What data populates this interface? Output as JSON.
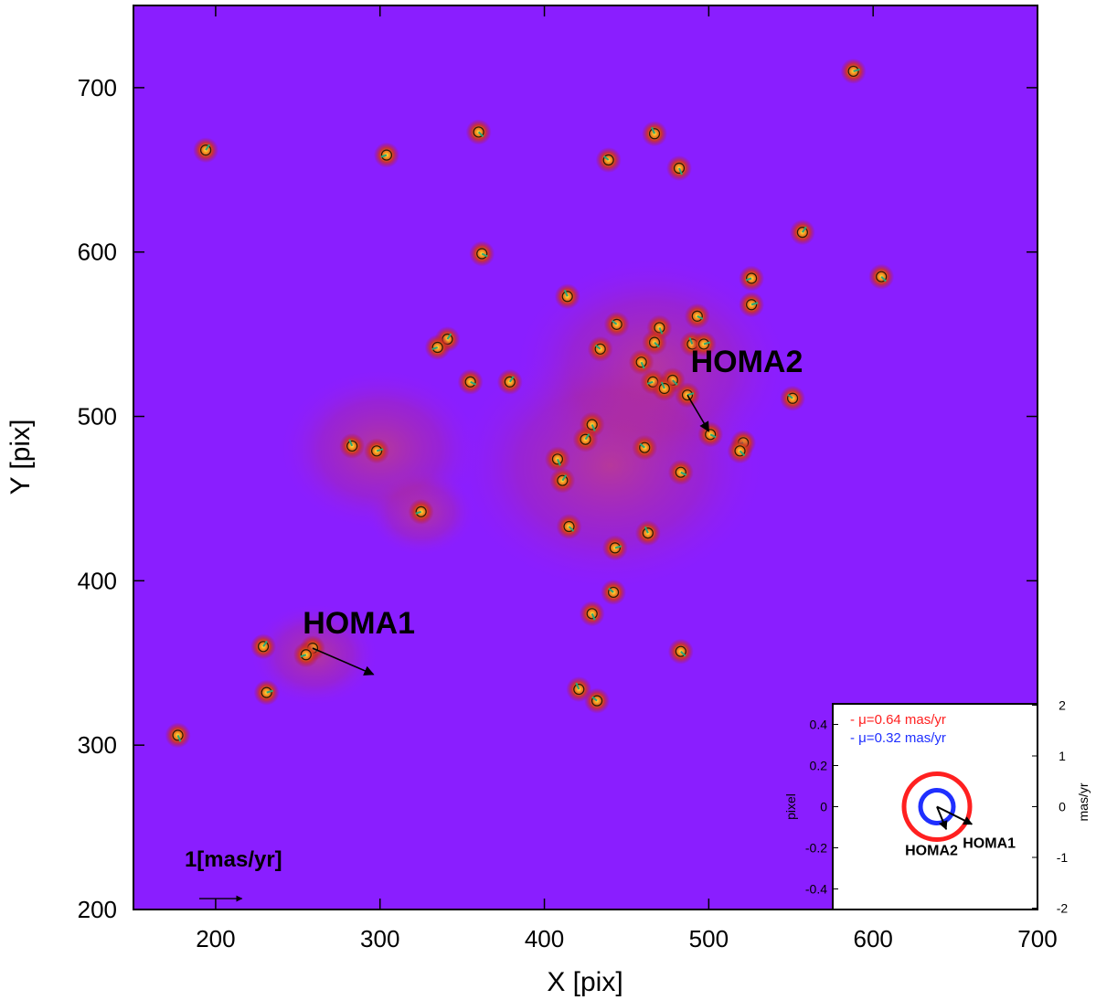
{
  "chart_data": {
    "type": "scatter",
    "title": "",
    "xlabel": "X [pix]",
    "ylabel": "Y [pix]",
    "xlim": [
      150,
      700
    ],
    "ylim": [
      200,
      750
    ],
    "xticks": [
      200,
      300,
      400,
      500,
      600,
      700
    ],
    "yticks": [
      200,
      300,
      400,
      500,
      600,
      700
    ],
    "grid": false,
    "colors": {
      "background": "#8a1eff",
      "halo": "#c0392b",
      "core": "#ffd400",
      "marker_ring": "#2b1a00",
      "vector": "#2aa87a"
    },
    "star_sources": [
      {
        "x": 194,
        "y": 662
      },
      {
        "x": 304,
        "y": 659
      },
      {
        "x": 360,
        "y": 673
      },
      {
        "x": 467,
        "y": 672
      },
      {
        "x": 588,
        "y": 710
      },
      {
        "x": 439,
        "y": 656
      },
      {
        "x": 482,
        "y": 651
      },
      {
        "x": 362,
        "y": 599
      },
      {
        "x": 557,
        "y": 612
      },
      {
        "x": 526,
        "y": 584
      },
      {
        "x": 605,
        "y": 585
      },
      {
        "x": 414,
        "y": 573
      },
      {
        "x": 526,
        "y": 568
      },
      {
        "x": 444,
        "y": 556
      },
      {
        "x": 470,
        "y": 554
      },
      {
        "x": 493,
        "y": 561
      },
      {
        "x": 341,
        "y": 547
      },
      {
        "x": 335,
        "y": 542
      },
      {
        "x": 467,
        "y": 545
      },
      {
        "x": 490,
        "y": 544
      },
      {
        "x": 497,
        "y": 544
      },
      {
        "x": 434,
        "y": 541
      },
      {
        "x": 459,
        "y": 533
      },
      {
        "x": 355,
        "y": 521
      },
      {
        "x": 379,
        "y": 521
      },
      {
        "x": 466,
        "y": 521
      },
      {
        "x": 478,
        "y": 522
      },
      {
        "x": 473,
        "y": 517
      },
      {
        "x": 487,
        "y": 513
      },
      {
        "x": 551,
        "y": 511
      },
      {
        "x": 429,
        "y": 495
      },
      {
        "x": 501,
        "y": 489
      },
      {
        "x": 425,
        "y": 486
      },
      {
        "x": 521,
        "y": 484
      },
      {
        "x": 519,
        "y": 479
      },
      {
        "x": 283,
        "y": 482
      },
      {
        "x": 298,
        "y": 479
      },
      {
        "x": 461,
        "y": 481
      },
      {
        "x": 408,
        "y": 474
      },
      {
        "x": 483,
        "y": 466
      },
      {
        "x": 411,
        "y": 461
      },
      {
        "x": 325,
        "y": 442
      },
      {
        "x": 415,
        "y": 433
      },
      {
        "x": 463,
        "y": 429
      },
      {
        "x": 443,
        "y": 420
      },
      {
        "x": 442,
        "y": 393
      },
      {
        "x": 429,
        "y": 380
      },
      {
        "x": 259,
        "y": 359
      },
      {
        "x": 229,
        "y": 360
      },
      {
        "x": 255,
        "y": 355
      },
      {
        "x": 483,
        "y": 357
      },
      {
        "x": 421,
        "y": 334
      },
      {
        "x": 231,
        "y": 332
      },
      {
        "x": 432,
        "y": 327
      },
      {
        "x": 177,
        "y": 306
      }
    ],
    "annotations": [
      {
        "text": "HOMA1",
        "x": 253,
        "y": 368,
        "vector_to": {
          "x": 296,
          "y": 343
        }
      },
      {
        "text": "HOMA2",
        "x": 489,
        "y": 527,
        "vector_to": {
          "x": 500,
          "y": 491
        }
      }
    ],
    "scale_bar": {
      "label": "1[mas/yr]",
      "x": 180,
      "y": 215,
      "vector_to": {
        "x": 206,
        "y": 215
      }
    },
    "inset": {
      "left_axis_label": "pixel",
      "right_axis_label": "mas/yr",
      "left_ylim": [
        -0.5,
        0.5
      ],
      "left_yticks": [
        "0.4",
        "0.2",
        "0",
        "-0.2",
        "-0.4"
      ],
      "left_ytick_values": [
        0.4,
        0.2,
        0,
        -0.2,
        -0.4
      ],
      "right_yticks": [
        "2",
        "1",
        "0",
        "-1",
        "-2"
      ],
      "right_ytick_values": [
        2,
        1,
        0,
        -1,
        -2
      ],
      "legend": [
        {
          "text": "- μ=0.64 mas/yr",
          "color": "#ff2020",
          "radius_pix": 0.16
        },
        {
          "text": "- μ=0.32 mas/yr",
          "color": "#1f2fff",
          "radius_pix": 0.08
        }
      ],
      "vectors": [
        {
          "label": "HOMA1",
          "dx": 0.17,
          "dy": -0.085
        },
        {
          "label": "HOMA2",
          "dx": 0.045,
          "dy": -0.11
        }
      ]
    }
  }
}
